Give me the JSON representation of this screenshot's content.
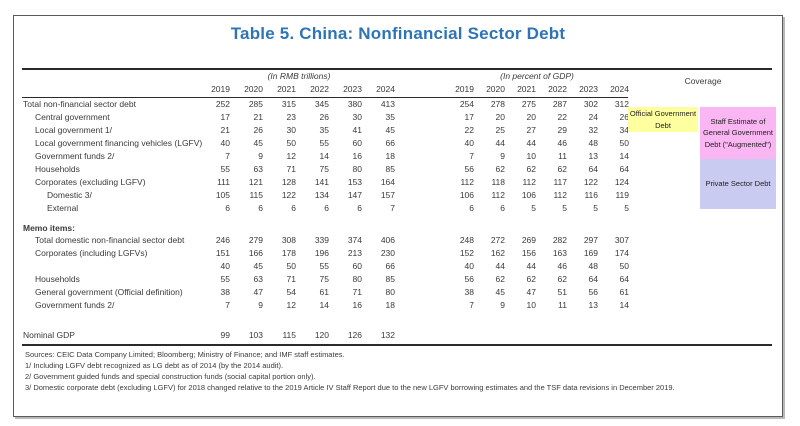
{
  "title": "Table 5. China: Nonfinancial Sector Debt",
  "table": {
    "group1_header": "(In RMB trillions)",
    "group2_header": "(In percent of GDP)",
    "coverage_header": "Coverage",
    "years": [
      "2019",
      "2020",
      "2021",
      "2022",
      "2023",
      "2024"
    ],
    "rows": [
      {
        "label": "Total non-financial sector debt",
        "indent": 0,
        "rmb": [
          252,
          285,
          315,
          345,
          380,
          413
        ],
        "pct": [
          254,
          278,
          275,
          287,
          302,
          312
        ]
      },
      {
        "label": "Central government",
        "indent": 1,
        "rmb": [
          17,
          21,
          23,
          26,
          30,
          35
        ],
        "pct": [
          17,
          20,
          20,
          22,
          24,
          26
        ]
      },
      {
        "label": "Local government 1/",
        "indent": 1,
        "rmb": [
          21,
          26,
          30,
          35,
          41,
          45
        ],
        "pct": [
          22,
          25,
          27,
          29,
          32,
          34
        ]
      },
      {
        "label": "Local government financing vehicles (LGFV)",
        "indent": 1,
        "rmb": [
          40,
          45,
          50,
          55,
          60,
          66
        ],
        "pct": [
          40,
          44,
          44,
          46,
          48,
          50
        ]
      },
      {
        "label": "Government funds 2/",
        "indent": 1,
        "rmb": [
          7,
          9,
          12,
          14,
          16,
          18
        ],
        "pct": [
          7,
          9,
          10,
          11,
          13,
          14
        ]
      },
      {
        "label": "Households",
        "indent": 1,
        "rmb": [
          55,
          63,
          71,
          75,
          80,
          85
        ],
        "pct": [
          56,
          62,
          62,
          62,
          64,
          64
        ]
      },
      {
        "label": "Corporates (excluding LGFV)",
        "indent": 1,
        "rmb": [
          111,
          121,
          128,
          141,
          153,
          164
        ],
        "pct": [
          112,
          118,
          112,
          117,
          122,
          124
        ]
      },
      {
        "label": "Domestic 3/",
        "indent": 2,
        "rmb": [
          105,
          115,
          122,
          134,
          147,
          157
        ],
        "pct": [
          106,
          112,
          106,
          112,
          116,
          119
        ]
      },
      {
        "label": "External",
        "indent": 2,
        "rmb": [
          6,
          6,
          6,
          6,
          6,
          7
        ],
        "pct": [
          6,
          6,
          5,
          5,
          5,
          5
        ]
      }
    ],
    "memo_header": "Memo items:",
    "memo_rows": [
      {
        "label": "Total domestic non-financial sector debt",
        "indent": 1,
        "rmb": [
          246,
          279,
          308,
          339,
          374,
          406
        ],
        "pct": [
          248,
          272,
          269,
          282,
          297,
          307
        ]
      },
      {
        "label": "Corporates (including LGFVs)",
        "indent": 1,
        "rmb": [
          151,
          166,
          178,
          196,
          213,
          230
        ],
        "pct": [
          152,
          162,
          156,
          163,
          169,
          174
        ]
      },
      {
        "label": "",
        "indent": 1,
        "rmb": [
          40,
          45,
          50,
          55,
          60,
          66
        ],
        "pct": [
          40,
          44,
          44,
          46,
          48,
          50
        ]
      },
      {
        "label": "Households",
        "indent": 1,
        "rmb": [
          55,
          63,
          71,
          75,
          80,
          85
        ],
        "pct": [
          56,
          62,
          62,
          62,
          64,
          64
        ]
      },
      {
        "label": "General government (Official definition)",
        "indent": 1,
        "rmb": [
          38,
          47,
          54,
          61,
          71,
          80
        ],
        "pct": [
          38,
          45,
          47,
          51,
          56,
          61
        ]
      },
      {
        "label": "Government funds 2/",
        "indent": 1,
        "rmb": [
          7,
          9,
          12,
          14,
          16,
          18
        ],
        "pct": [
          7,
          9,
          10,
          11,
          13,
          14
        ]
      }
    ],
    "gdp_row": {
      "label": "Nominal GDP",
      "indent": 0,
      "rmb": [
        99,
        103,
        115,
        120,
        126,
        132
      ],
      "pct": [
        "",
        "",
        "",
        "",
        "",
        ""
      ]
    }
  },
  "coverage": {
    "official": {
      "text": "Official Government Debt",
      "color": "#feff9e"
    },
    "augmented": {
      "text": "Staff Estimate of General Government Debt (\"Augmented\")",
      "color": "#fab5f3"
    },
    "private": {
      "text": "Private Sector Debt",
      "color": "#c9cbf0"
    }
  },
  "footnotes": [
    "Sources: CEIC Data Company Limited; Bloomberg; Ministry of Finance; and IMF staff estimates.",
    "1/ Including LGFV debt recognized as LG debt as of 2014 (by the 2014 audit).",
    "2/ Government guided funds and special construction funds (social capital portion only).",
    "3/ Domestic corporate debt (excluding LGFV) for 2018 changed relative to the 2019 Article IV Staff Report due to the new LGFV borrowing estimates and the TSF data revisions in December 2019."
  ]
}
